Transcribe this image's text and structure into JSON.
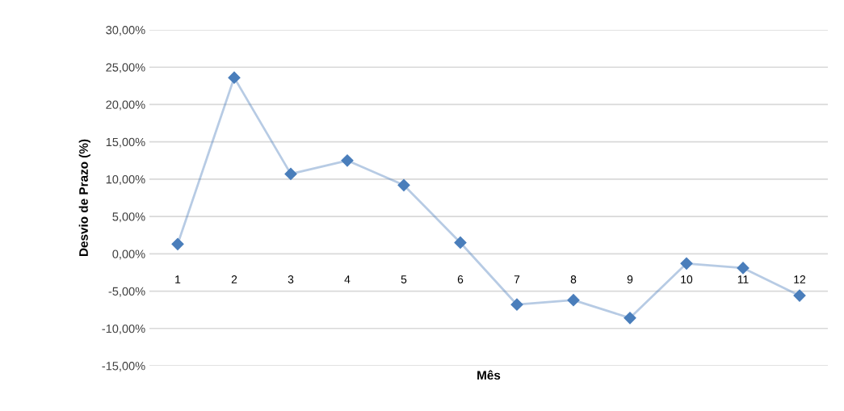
{
  "chart_data": {
    "type": "line",
    "xlabel": "Mês",
    "ylabel": "Desvio de Prazo (%)",
    "categories": [
      "1",
      "2",
      "3",
      "4",
      "5",
      "6",
      "7",
      "8",
      "9",
      "10",
      "11",
      "12"
    ],
    "series": [
      {
        "color": "#4a7ebb",
        "values": [
          1.3,
          23.6,
          10.7,
          12.5,
          9.2,
          1.5,
          -6.8,
          -6.2,
          -8.6,
          -1.3,
          -1.9,
          -5.6
        ]
      }
    ],
    "ylim": [
      -15,
      30
    ],
    "yticks": [
      {
        "value": -15,
        "label": "-15,00%"
      },
      {
        "value": -10,
        "label": "-10,00%"
      },
      {
        "value": -5,
        "label": "-5,00%"
      },
      {
        "value": 0,
        "label": "0,00%"
      },
      {
        "value": 5,
        "label": "5,00%"
      },
      {
        "value": 10,
        "label": "10,00%"
      },
      {
        "value": 15,
        "label": "15,00%"
      },
      {
        "value": 20,
        "label": "20,00%"
      },
      {
        "value": 25,
        "label": "25,00%"
      },
      {
        "value": 30,
        "label": "30,00%"
      }
    ],
    "grid": "y",
    "marker": "diamond",
    "line_style": "solid"
  }
}
